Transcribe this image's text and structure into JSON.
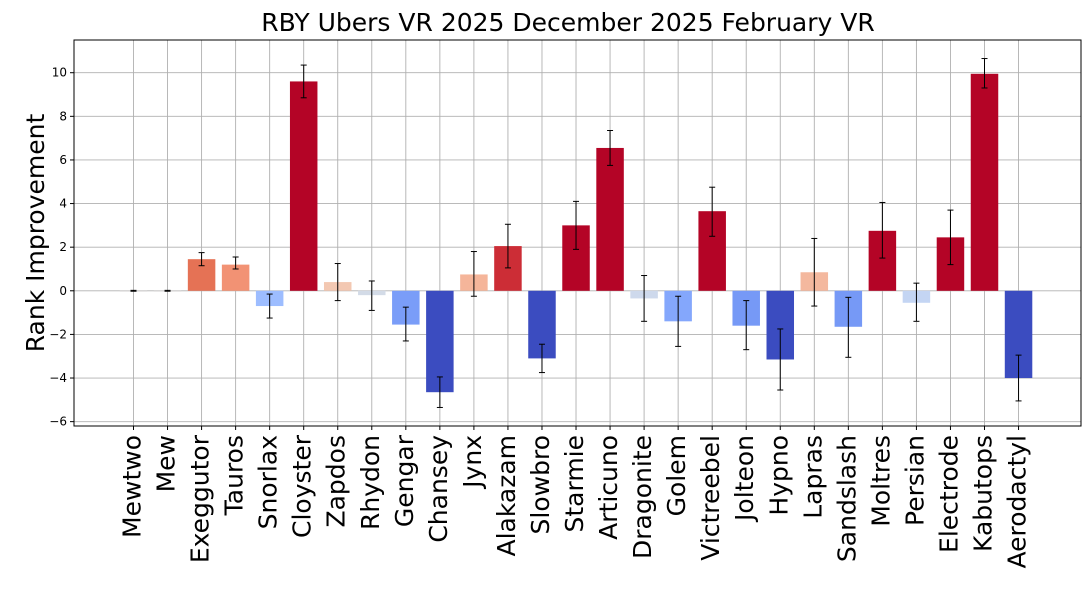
{
  "chart_data": {
    "type": "bar",
    "title": "RBY Ubers VR 2025 December 2025 February VR",
    "xlabel": "",
    "ylabel": "Rank Improvement",
    "ylim": [
      -6.2,
      11.5
    ],
    "yticks": [
      -6,
      -4,
      -2,
      0,
      2,
      4,
      6,
      8,
      10
    ],
    "grid": true,
    "categories": [
      "Mewtwo",
      "Mew",
      "Exeggutor",
      "Tauros",
      "Snorlax",
      "Cloyster",
      "Zapdos",
      "Rhydon",
      "Gengar",
      "Chansey",
      "Jynx",
      "Alakazam",
      "Slowbro",
      "Starmie",
      "Articuno",
      "Dragonite",
      "Golem",
      "Victreebel",
      "Jolteon",
      "Hypno",
      "Lapras",
      "Sandslash",
      "Moltres",
      "Persian",
      "Electrode",
      "Kabutops",
      "Aerodactyl"
    ],
    "values": [
      0.0,
      0.0,
      1.45,
      1.2,
      -0.7,
      9.6,
      0.4,
      -0.2,
      -1.55,
      -4.65,
      0.75,
      2.05,
      -3.1,
      3.0,
      6.55,
      -0.35,
      -1.4,
      3.65,
      -1.6,
      -3.15,
      0.85,
      -1.65,
      2.75,
      -0.55,
      2.45,
      9.95,
      -4.0
    ],
    "errors": [
      [
        -0.02,
        0.02
      ],
      [
        -0.02,
        0.02
      ],
      [
        1.15,
        1.75
      ],
      [
        1.0,
        1.55
      ],
      [
        -1.25,
        -0.15
      ],
      [
        8.85,
        10.35
      ],
      [
        -0.45,
        1.25
      ],
      [
        -0.9,
        0.45
      ],
      [
        -2.3,
        -0.75
      ],
      [
        -5.35,
        -3.95
      ],
      [
        -0.25,
        1.8
      ],
      [
        1.05,
        3.05
      ],
      [
        -3.75,
        -2.45
      ],
      [
        1.9,
        4.1
      ],
      [
        5.75,
        7.35
      ],
      [
        -1.4,
        0.7
      ],
      [
        -2.55,
        -0.25
      ],
      [
        2.5,
        4.75
      ],
      [
        -2.7,
        -0.45
      ],
      [
        -4.55,
        -1.75
      ],
      [
        -0.7,
        2.4
      ],
      [
        -3.05,
        -0.3
      ],
      [
        1.5,
        4.05
      ],
      [
        -1.4,
        0.35
      ],
      [
        1.2,
        3.7
      ],
      [
        9.3,
        10.65
      ],
      [
        -5.05,
        -2.95
      ]
    ],
    "bar_colors": [
      "#dddcdc",
      "#dddcdc",
      "#e57255",
      "#f29274",
      "#9dbdff",
      "#b40426",
      "#f3c8b2",
      "#d3dbe7",
      "#7a9df8",
      "#3b4cc0",
      "#f5b59a",
      "#cc2d36",
      "#3b4cc0",
      "#b40426",
      "#b40426",
      "#ced9ec",
      "#84a7fc",
      "#b40426",
      "#7699f6",
      "#3b4cc0",
      "#f4b89e",
      "#7699f6",
      "#b40426",
      "#c4d5f3",
      "#b40426",
      "#b40426",
      "#3b4cc0"
    ],
    "grid_color": "#b0b0b0"
  }
}
